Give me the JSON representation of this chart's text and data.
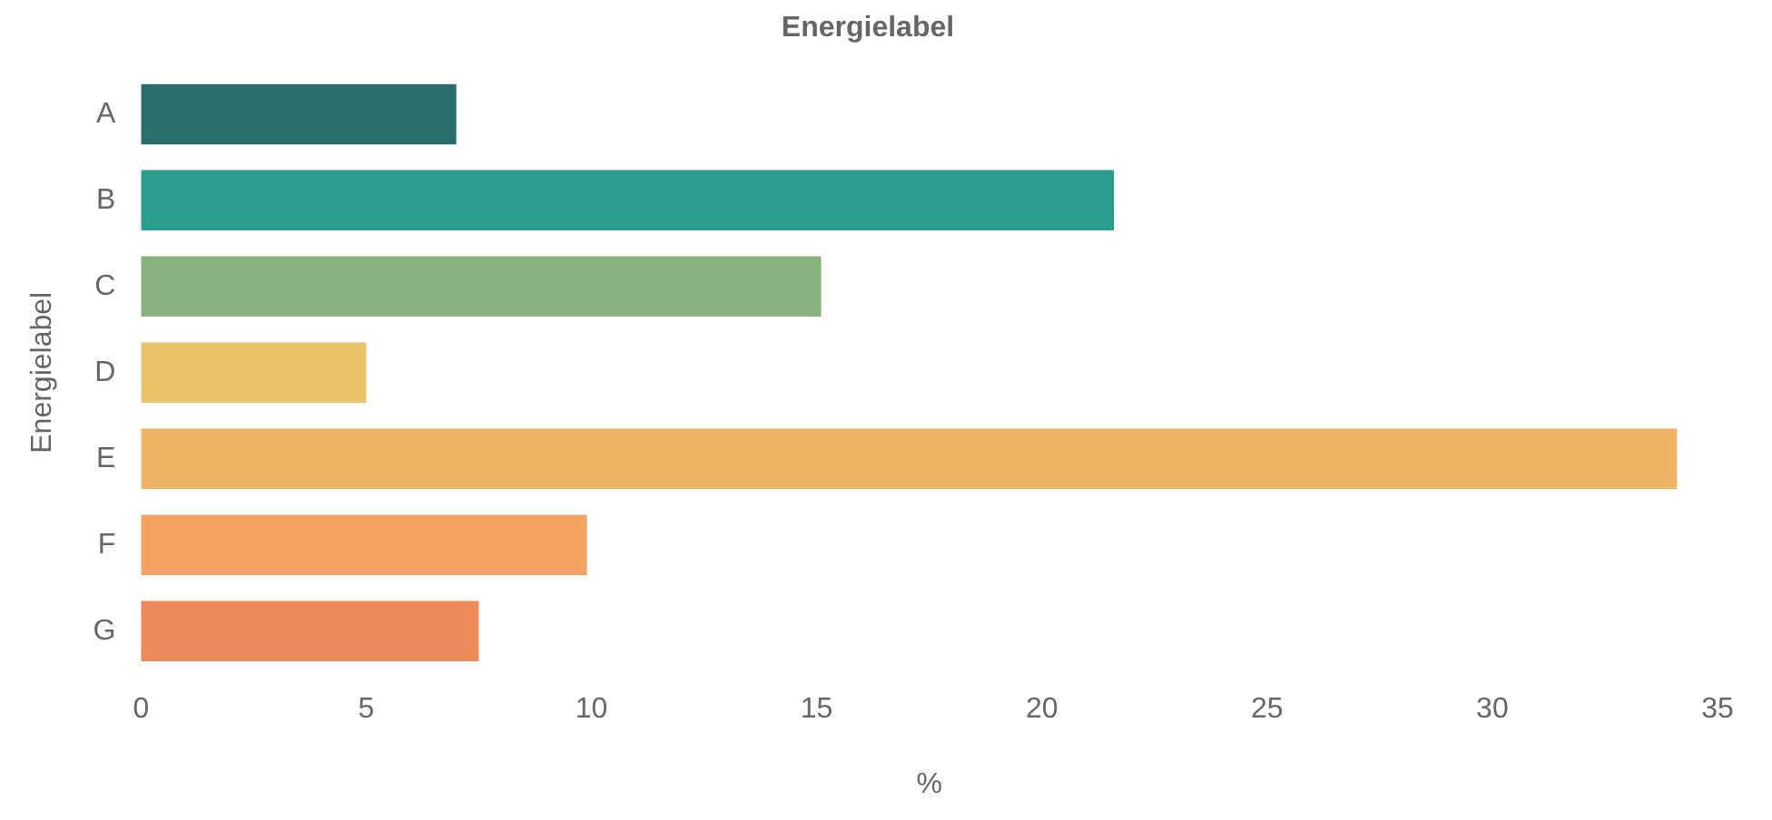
{
  "chart_data": {
    "type": "bar",
    "orientation": "horizontal",
    "title": "Energielabel",
    "xlabel": "%",
    "ylabel": "Energielabel",
    "categories": [
      "A",
      "B",
      "C",
      "D",
      "E",
      "F",
      "G"
    ],
    "values": [
      7.0,
      21.6,
      15.1,
      5.0,
      34.1,
      9.9,
      7.5
    ],
    "colors": [
      "#2a6e6b",
      "#2a9d8f",
      "#8ab17d",
      "#e9c46a",
      "#efb366",
      "#f4a261",
      "#ee8959"
    ],
    "xlim": [
      0,
      35
    ],
    "xticks": [
      0,
      5,
      10,
      15,
      20,
      25,
      30,
      35
    ],
    "grid": false,
    "legend": false
  }
}
